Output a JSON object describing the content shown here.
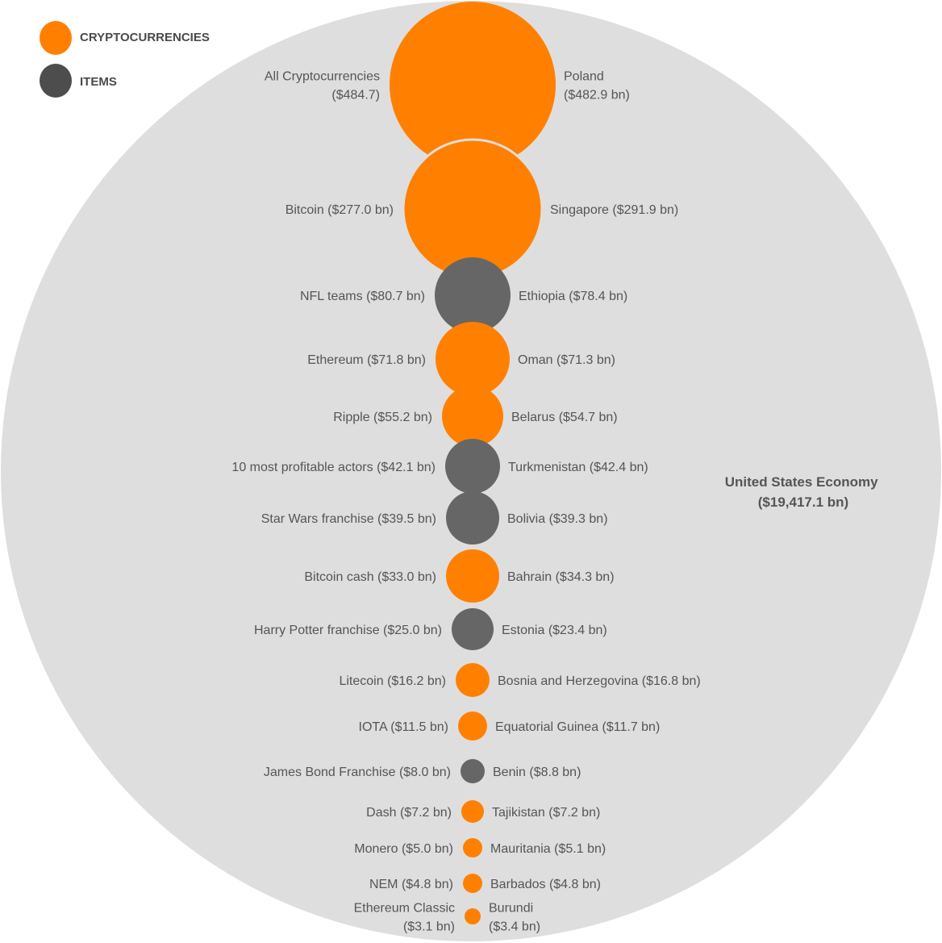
{
  "chart_data": {
    "type": "bubble",
    "colors": {
      "cryptocurrencies": "#FF8000",
      "items": "#666666",
      "economy": "#DEDEDE"
    },
    "legend": {
      "placement": "top-left",
      "entries": [
        {
          "label": "CRYPTOCURRENCIES",
          "color": "#FF8000"
        },
        {
          "label": "ITEMS",
          "color": "#4D4D4D"
        }
      ]
    },
    "container": {
      "label_lines": [
        "United States Economy",
        "($19,417.1 bn)"
      ],
      "value_bn": 19417.1
    },
    "bubbles": [
      {
        "category": "cryptocurrencies",
        "value_bn": 484.7,
        "left_label": [
          "All Cryptocurrencies",
          "($484.7)"
        ],
        "right_label": [
          "Poland",
          "($482.9 bn)"
        ]
      },
      {
        "category": "cryptocurrencies",
        "value_bn": 277.0,
        "left_label": [
          "Bitcoin ($277.0 bn)"
        ],
        "right_label": [
          "Singapore ($291.9 bn)"
        ]
      },
      {
        "category": "items",
        "value_bn": 80.7,
        "left_label": [
          "NFL teams ($80.7 bn)"
        ],
        "right_label": [
          "Ethiopia ($78.4 bn)"
        ]
      },
      {
        "category": "cryptocurrencies",
        "value_bn": 71.8,
        "left_label": [
          "Ethereum ($71.8 bn)"
        ],
        "right_label": [
          "Oman ($71.3 bn)"
        ]
      },
      {
        "category": "cryptocurrencies",
        "value_bn": 55.2,
        "left_label": [
          "Ripple ($55.2 bn)"
        ],
        "right_label": [
          "Belarus ($54.7 bn)"
        ]
      },
      {
        "category": "items",
        "value_bn": 42.1,
        "left_label": [
          "10 most profitable actors ($42.1 bn)"
        ],
        "right_label": [
          "Turkmenistan ($42.4 bn)"
        ]
      },
      {
        "category": "items",
        "value_bn": 39.5,
        "left_label": [
          "Star Wars franchise ($39.5 bn)"
        ],
        "right_label": [
          "Bolivia ($39.3 bn)"
        ]
      },
      {
        "category": "cryptocurrencies",
        "value_bn": 33.0,
        "left_label": [
          "Bitcoin cash ($33.0 bn)"
        ],
        "right_label": [
          "Bahrain ($34.3 bn)"
        ]
      },
      {
        "category": "items",
        "value_bn": 25.0,
        "left_label": [
          "Harry Potter franchise ($25.0 bn)"
        ],
        "right_label": [
          "Estonia ($23.4 bn)"
        ]
      },
      {
        "category": "cryptocurrencies",
        "value_bn": 16.2,
        "left_label": [
          "Litecoin ($16.2 bn)"
        ],
        "right_label": [
          "Bosnia and Herzegovina ($16.8 bn)"
        ]
      },
      {
        "category": "cryptocurrencies",
        "value_bn": 11.5,
        "left_label": [
          "IOTA ($11.5 bn)"
        ],
        "right_label": [
          "Equatorial Guinea ($11.7 bn)"
        ]
      },
      {
        "category": "items",
        "value_bn": 8.0,
        "left_label": [
          "James Bond Franchise ($8.0 bn)"
        ],
        "right_label": [
          "Benin ($8.8 bn)"
        ]
      },
      {
        "category": "cryptocurrencies",
        "value_bn": 7.2,
        "left_label": [
          "Dash ($7.2 bn)"
        ],
        "right_label": [
          "Tajikistan ($7.2 bn)"
        ]
      },
      {
        "category": "cryptocurrencies",
        "value_bn": 5.0,
        "left_label": [
          "Monero ($5.0 bn)"
        ],
        "right_label": [
          "Mauritania ($5.1 bn)"
        ]
      },
      {
        "category": "cryptocurrencies",
        "value_bn": 4.8,
        "left_label": [
          "NEM ($4.8 bn)"
        ],
        "right_label": [
          "Barbados ($4.8 bn)"
        ]
      },
      {
        "category": "cryptocurrencies",
        "value_bn": 3.1,
        "left_label": [
          "Ethereum Classic",
          "($3.1 bn)"
        ],
        "right_label": [
          "Burundi",
          "($3.4 bn)"
        ]
      }
    ]
  }
}
